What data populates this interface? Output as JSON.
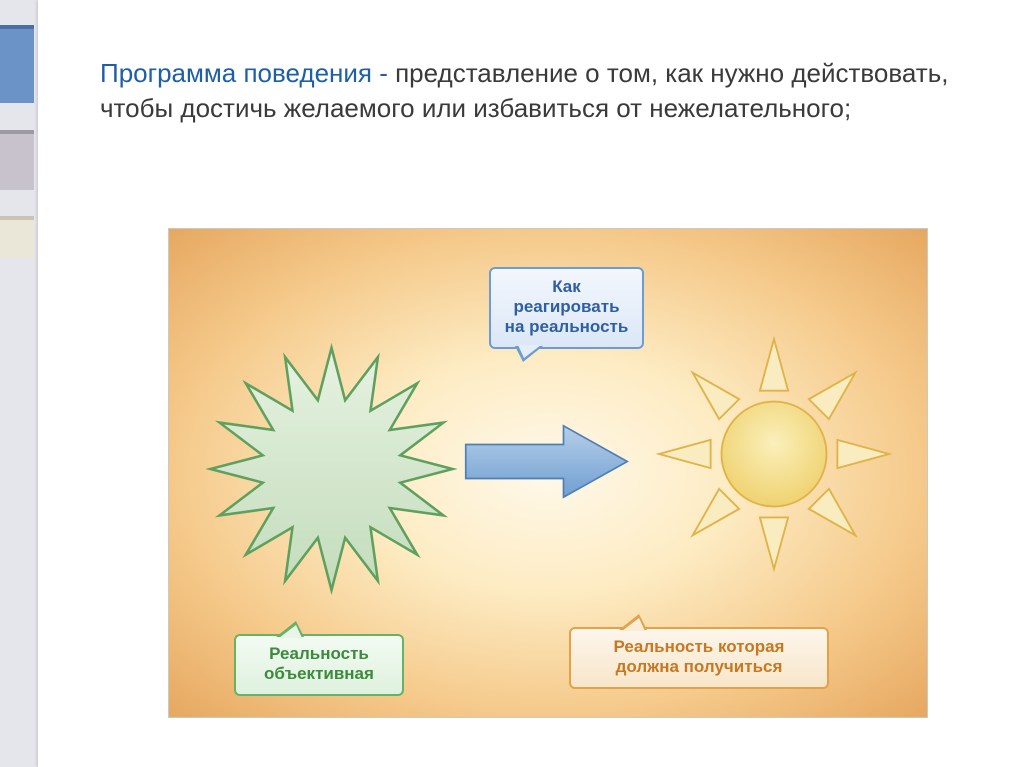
{
  "heading": {
    "term": "Программа поведения - ",
    "rest": "представление о том, как нужно действовать, чтобы достичь желаемого или избавиться от нежелательного;"
  },
  "callouts": {
    "blue": {
      "text": "Как реагировать на реальность",
      "fontsize": 17,
      "text_color": "#2f5fa3",
      "border_color": "#6d9cd4",
      "fill_top": "#f3f7fd",
      "fill_bottom": "#dbe7f6"
    },
    "green": {
      "text": "Реальность объективная",
      "fontsize": 17,
      "text_color": "#3d8a3d",
      "border_color": "#66b266",
      "fill_top": "#f3fbf3",
      "fill_bottom": "#def1de"
    },
    "orange": {
      "text": "Реальность которая должна получиться",
      "fontsize": 17,
      "text_color": "#c77822",
      "border_color": "#e3a14a",
      "fill_top": "#fdf6ec",
      "fill_bottom": "#f8e6c9"
    }
  },
  "shapes": {
    "starburst": {
      "points": 16,
      "fill": "#d7ead2",
      "stroke": "#5fa05f",
      "stroke_width": 2
    },
    "arrow": {
      "fill_top": "#b7cfe9",
      "fill_bottom": "#6f9fd1",
      "stroke": "#4e7fb5",
      "stroke_width": 2
    },
    "sun": {
      "circle_fill": "#f5e08f",
      "circle_stroke": "#e0b34a",
      "ray_fill": "#f9ecc0",
      "ray_stroke": "#e0b34a",
      "rays": 8
    }
  },
  "diagram_background": {
    "gradient": [
      "#fff9ea",
      "#fdebc2",
      "#f5c98a",
      "#e6a860"
    ],
    "border_color": "#c9c9c9"
  },
  "accent_bars": [
    {
      "color": "#6b93c7",
      "border": "#4a6fa0"
    },
    {
      "color": "#c7c2cc",
      "border": "#9e99a3"
    },
    {
      "color": "#ebe7d8",
      "border": "#c9c5b5"
    }
  ],
  "slide_background": "#ffffff",
  "page_background": "#e5e5ec",
  "heading_fontsize": 26,
  "term_color": "#1e5fa8",
  "text_color": "#3a3a3a"
}
